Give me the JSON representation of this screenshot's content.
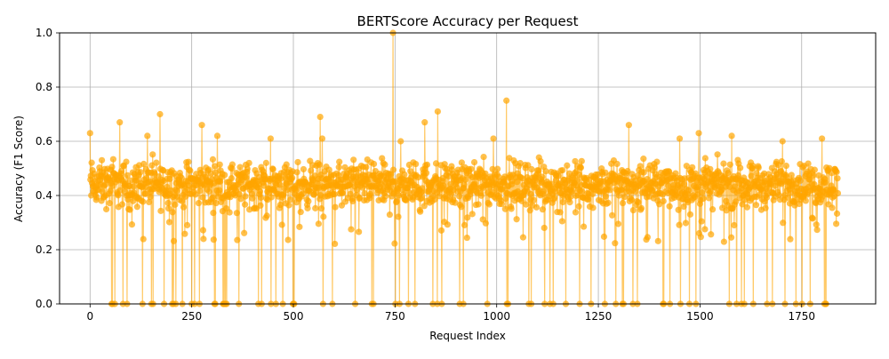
{
  "chart_data": {
    "type": "line",
    "title": "BERTScore Accuracy per Request",
    "xlabel": "Request Index",
    "ylabel": "Accuracy (F1 Score)",
    "xlim": [
      -75,
      1932
    ],
    "ylim": [
      0.0,
      1.0
    ],
    "x_ticks": [
      "0",
      "250",
      "500",
      "750",
      "1000",
      "1250",
      "1500",
      "1750"
    ],
    "y_ticks": [
      "0.0",
      "0.2",
      "0.4",
      "0.6",
      "0.8",
      "1.0"
    ],
    "grid": true,
    "color": "#FFA500",
    "markers": true,
    "n_points": 1840,
    "summary": {
      "typical_range": [
        0.33,
        0.55
      ],
      "zero_values_present": true,
      "max": {
        "x": 745,
        "y": 1.0
      }
    },
    "notable_points": [
      {
        "x": 0,
        "y": 0.63
      },
      {
        "x": 73,
        "y": 0.67
      },
      {
        "x": 141,
        "y": 0.62
      },
      {
        "x": 172,
        "y": 0.7
      },
      {
        "x": 275,
        "y": 0.66
      },
      {
        "x": 313,
        "y": 0.62
      },
      {
        "x": 444,
        "y": 0.61
      },
      {
        "x": 566,
        "y": 0.69
      },
      {
        "x": 571,
        "y": 0.61
      },
      {
        "x": 745,
        "y": 1.0
      },
      {
        "x": 764,
        "y": 0.6
      },
      {
        "x": 823,
        "y": 0.67
      },
      {
        "x": 855,
        "y": 0.71
      },
      {
        "x": 992,
        "y": 0.61
      },
      {
        "x": 1024,
        "y": 0.75
      },
      {
        "x": 1325,
        "y": 0.66
      },
      {
        "x": 1450,
        "y": 0.61
      },
      {
        "x": 1497,
        "y": 0.63
      },
      {
        "x": 1578,
        "y": 0.62
      },
      {
        "x": 1703,
        "y": 0.6
      },
      {
        "x": 1800,
        "y": 0.61
      }
    ]
  }
}
